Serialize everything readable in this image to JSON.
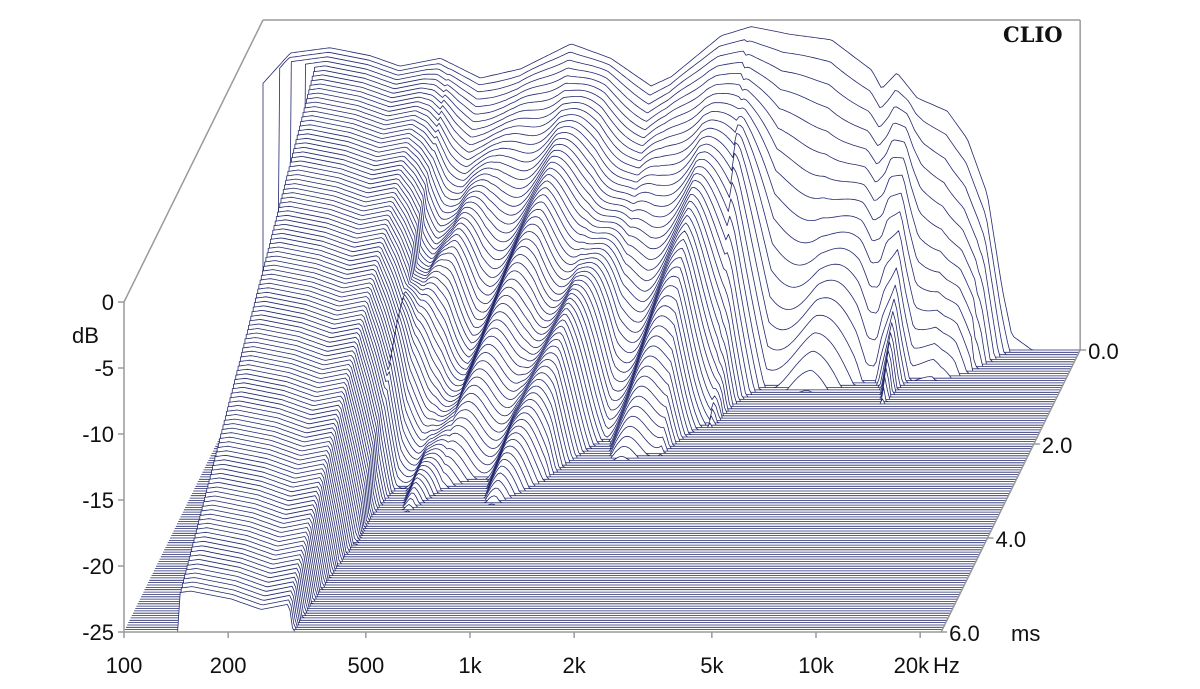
{
  "chart_data": {
    "type": "waterfall",
    "brand": "CLIO",
    "title": "",
    "y_axis": {
      "label": "dB",
      "range": [
        -25,
        0
      ],
      "ticks": [
        "0",
        "-5",
        "-10",
        "-15",
        "-20",
        "-25"
      ],
      "tick_values": [
        0,
        -5,
        -10,
        -15,
        -20,
        -25
      ]
    },
    "x_axis": {
      "unit": "Hz",
      "scale": "log",
      "range": [
        100,
        23000
      ],
      "ticks": [
        "100",
        "200",
        "500",
        "1k",
        "2k",
        "5k",
        "10k",
        "20k"
      ],
      "tick_values": [
        100,
        200,
        500,
        1000,
        2000,
        5000,
        10000,
        20000
      ]
    },
    "z_axis": {
      "unit": "ms",
      "range": [
        0,
        6
      ],
      "ticks": [
        "0.0",
        "2.0",
        "4.0",
        "6.0"
      ],
      "tick_values": [
        0,
        2,
        4,
        6
      ]
    },
    "slices": 120,
    "response_0ms": [
      [
        100,
        -4.8
      ],
      [
        120,
        -2.5
      ],
      [
        156,
        -2.1
      ],
      [
        204,
        -2.7
      ],
      [
        249,
        -3.5
      ],
      [
        326,
        -2.9
      ],
      [
        425,
        -4.4
      ],
      [
        556,
        -3.7
      ],
      [
        777,
        -1.8
      ],
      [
        1012,
        -2.9
      ],
      [
        1323,
        -5.0
      ],
      [
        1513,
        -4.3
      ],
      [
        2107,
        -1.2
      ],
      [
        2574,
        -0.5
      ],
      [
        3367,
        -1.1
      ],
      [
        4394,
        -1.5
      ],
      [
        5746,
        -3.8
      ],
      [
        6140,
        -5.2
      ],
      [
        6800,
        -4.0
      ],
      [
        7770,
        -5.9
      ],
      [
        9500,
        -6.9
      ],
      [
        10850,
        -9.0
      ],
      [
        12400,
        -13.2
      ],
      [
        13700,
        -20.4
      ],
      [
        14600,
        -23.9
      ],
      [
        16700,
        -25
      ],
      [
        23000,
        -25
      ]
    ],
    "decay_db_per_ms": [
      [
        100,
        3.3
      ],
      [
        300,
        3.3
      ],
      [
        380,
        6.5
      ],
      [
        450,
        6.5
      ],
      [
        520,
        7.5
      ],
      [
        1000,
        7.5
      ],
      [
        1300,
        9.5
      ],
      [
        2000,
        9.5
      ],
      [
        2600,
        16
      ],
      [
        3200,
        28
      ],
      [
        6500,
        28
      ],
      [
        7400,
        18
      ],
      [
        8200,
        28
      ],
      [
        10000,
        30
      ],
      [
        23000,
        30
      ]
    ],
    "colors": {
      "trace": "#23286e",
      "frame": "#9a9a9a"
    }
  }
}
